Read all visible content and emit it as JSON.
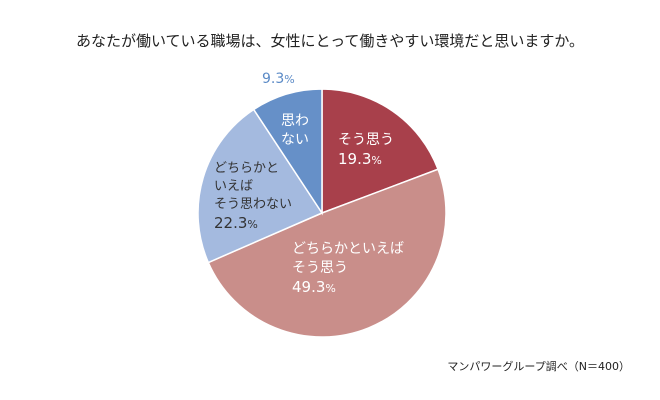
{
  "chart_data": {
    "type": "pie",
    "title": "あなたが働いている職場は、女性にとって働きやすい環境だと思いますか。",
    "start_angle": "12 o'clock",
    "direction": "clockwise",
    "slices": [
      {
        "label_lines": [
          "そう思う"
        ],
        "value": 19.3,
        "value_text": "19.3",
        "color": "#a8404b",
        "label_color": "#ffffff"
      },
      {
        "label_lines": [
          "どちらかといえば",
          "そう思う"
        ],
        "value": 49.3,
        "value_text": "49.3",
        "color": "#c98e8a",
        "label_color": "#ffffff"
      },
      {
        "label_lines": [
          "どちらかと",
          "いえば",
          "そう思わない"
        ],
        "value": 22.3,
        "value_text": "22.3",
        "color": "#a4badf",
        "label_color": "#333333"
      },
      {
        "label_lines": [
          "思わ",
          "ない"
        ],
        "value": 9.3,
        "value_text": "9.3",
        "color": "#6690c8",
        "label_color": "#ffffff",
        "value_color": "#5b8ac6"
      }
    ],
    "unit": "%",
    "source": "マンパワーグループ調べ（N＝400）"
  }
}
